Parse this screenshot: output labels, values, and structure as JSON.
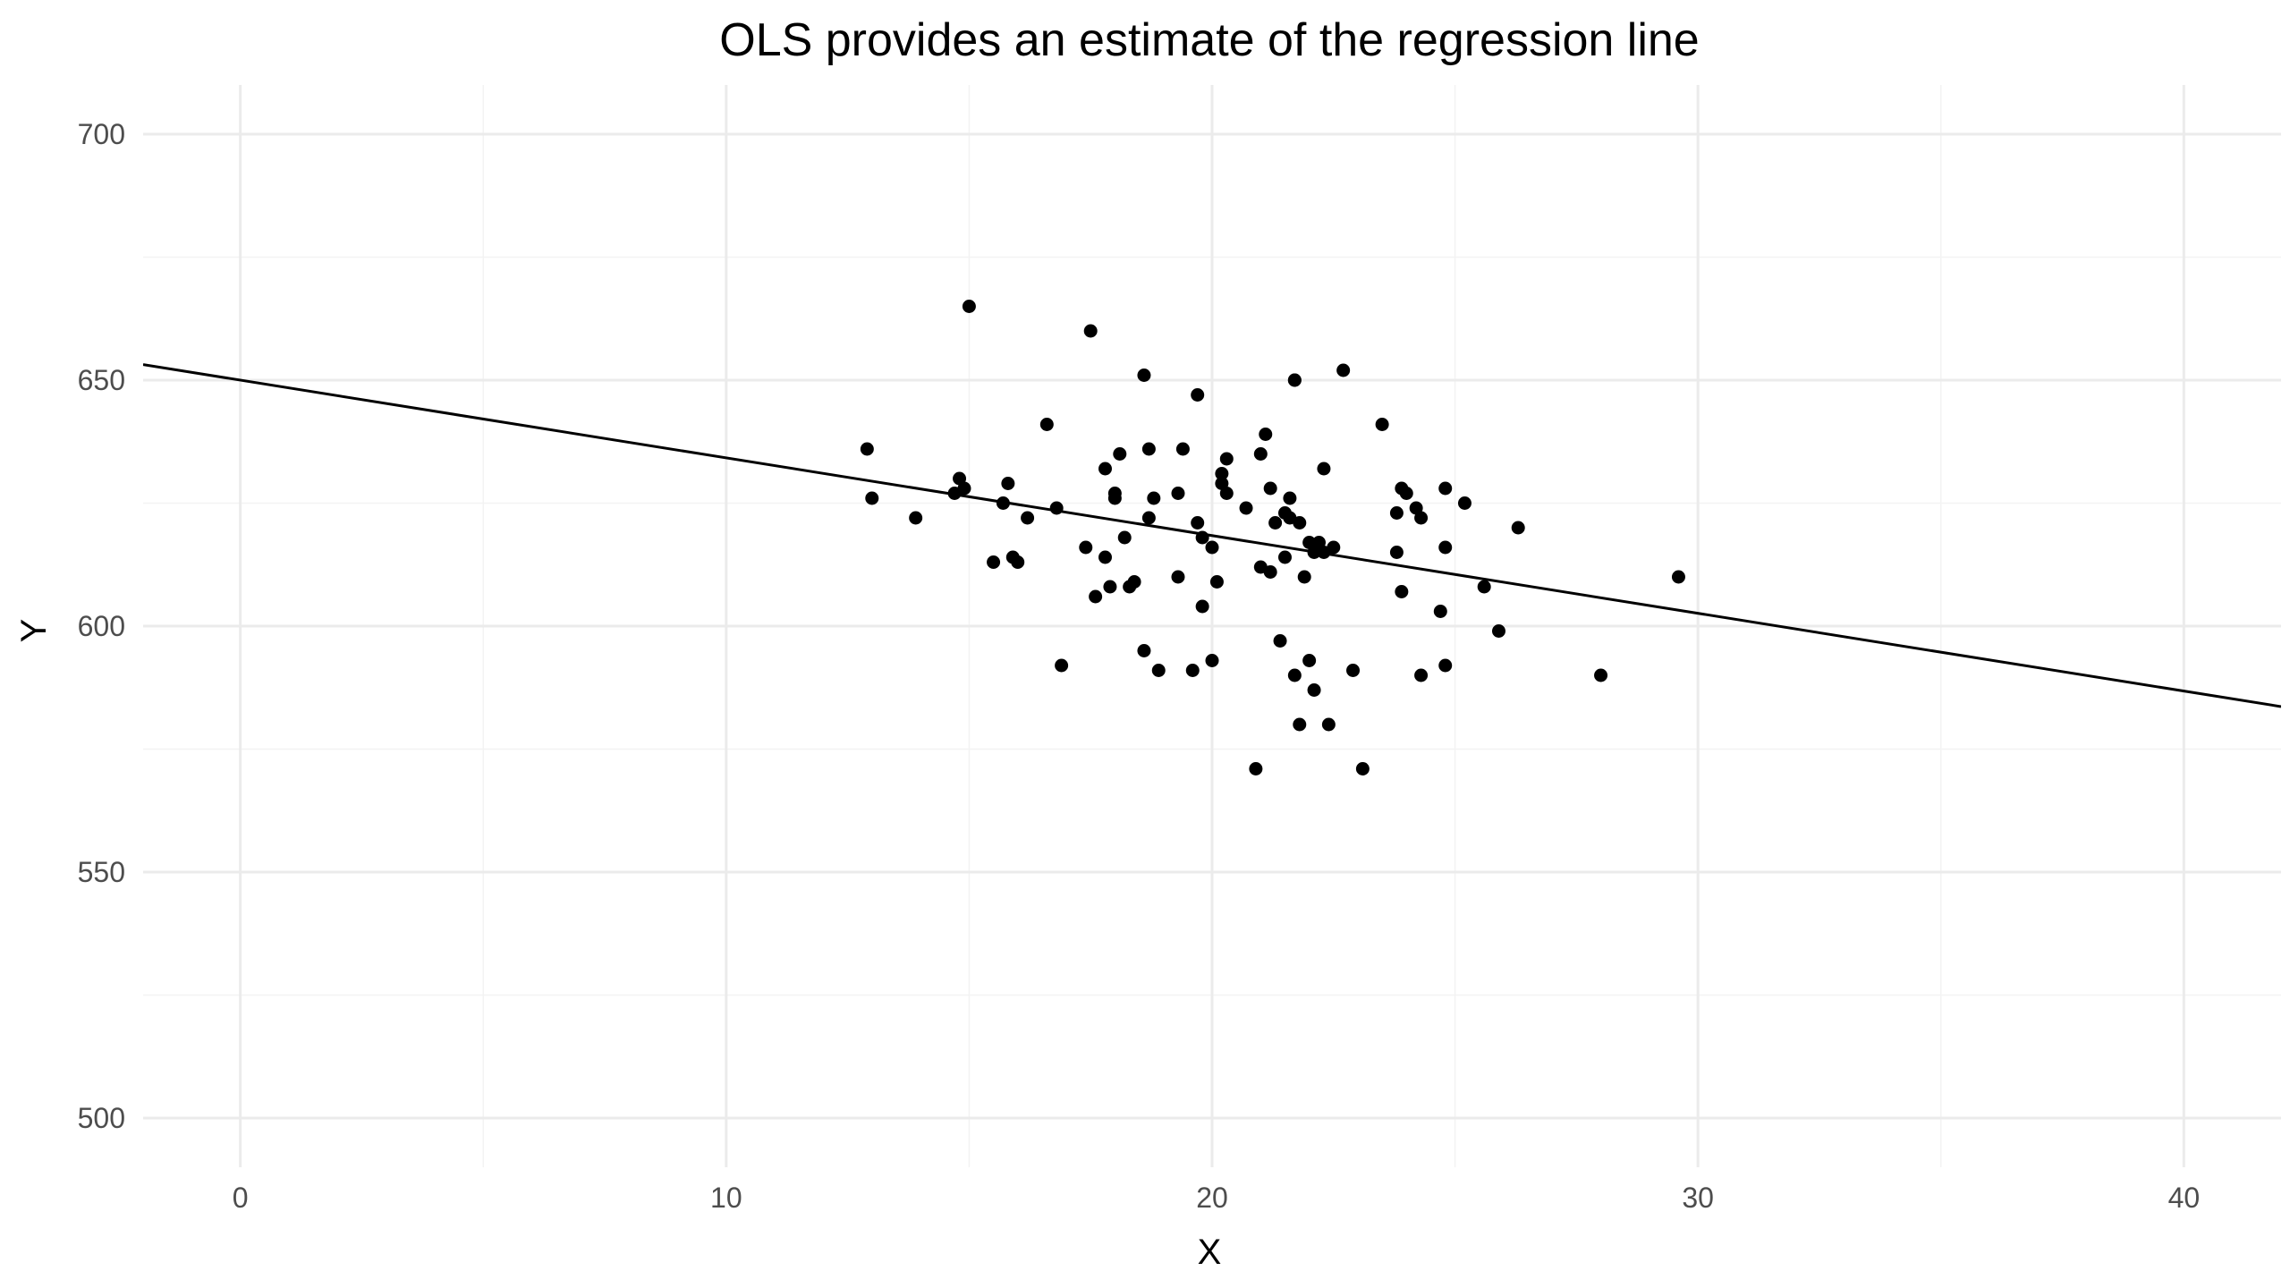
{
  "chart_data": {
    "type": "scatter",
    "title": "OLS provides an estimate of the regression line",
    "xlabel": "X",
    "ylabel": "Y",
    "xlim": [
      -2,
      42
    ],
    "ylim": [
      490,
      710
    ],
    "x_ticks": [
      0,
      10,
      20,
      30,
      40
    ],
    "y_ticks": [
      500,
      550,
      600,
      650,
      700
    ],
    "grid": true,
    "regression_line": {
      "intercept": 650,
      "slope": -1.58
    },
    "points": [
      [
        12.9,
        636
      ],
      [
        13.0,
        626
      ],
      [
        13.9,
        622
      ],
      [
        14.7,
        627
      ],
      [
        14.8,
        630
      ],
      [
        14.9,
        628
      ],
      [
        15.0,
        665
      ],
      [
        15.5,
        613
      ],
      [
        15.7,
        625
      ],
      [
        15.8,
        629
      ],
      [
        15.9,
        614
      ],
      [
        16.0,
        613
      ],
      [
        16.2,
        622
      ],
      [
        16.6,
        641
      ],
      [
        16.8,
        624
      ],
      [
        16.9,
        592
      ],
      [
        17.4,
        616
      ],
      [
        17.5,
        660
      ],
      [
        17.6,
        606
      ],
      [
        17.8,
        614
      ],
      [
        17.8,
        632
      ],
      [
        17.9,
        608
      ],
      [
        18.0,
        627
      ],
      [
        18.0,
        626
      ],
      [
        18.1,
        635
      ],
      [
        18.2,
        618
      ],
      [
        18.3,
        608
      ],
      [
        18.4,
        609
      ],
      [
        18.6,
        595
      ],
      [
        18.6,
        651
      ],
      [
        18.7,
        622
      ],
      [
        18.7,
        636
      ],
      [
        18.8,
        626
      ],
      [
        18.9,
        591
      ],
      [
        19.3,
        610
      ],
      [
        19.3,
        627
      ],
      [
        19.4,
        636
      ],
      [
        19.6,
        591
      ],
      [
        19.7,
        621
      ],
      [
        19.7,
        647
      ],
      [
        19.8,
        604
      ],
      [
        19.8,
        618
      ],
      [
        20.0,
        616
      ],
      [
        20.0,
        593
      ],
      [
        20.1,
        609
      ],
      [
        20.2,
        631
      ],
      [
        20.2,
        629
      ],
      [
        20.3,
        627
      ],
      [
        20.3,
        634
      ],
      [
        20.7,
        624
      ],
      [
        20.9,
        571
      ],
      [
        21.0,
        612
      ],
      [
        21.0,
        635
      ],
      [
        21.1,
        639
      ],
      [
        21.2,
        611
      ],
      [
        21.2,
        628
      ],
      [
        21.3,
        621
      ],
      [
        21.4,
        597
      ],
      [
        21.5,
        623
      ],
      [
        21.5,
        614
      ],
      [
        21.6,
        626
      ],
      [
        21.6,
        622
      ],
      [
        21.7,
        650
      ],
      [
        21.7,
        650
      ],
      [
        21.7,
        590
      ],
      [
        21.8,
        621
      ],
      [
        21.8,
        580
      ],
      [
        21.9,
        610
      ],
      [
        22.0,
        617
      ],
      [
        22.0,
        593
      ],
      [
        22.1,
        615
      ],
      [
        22.1,
        587
      ],
      [
        22.2,
        617
      ],
      [
        22.3,
        615
      ],
      [
        22.3,
        632
      ],
      [
        22.4,
        580
      ],
      [
        22.5,
        616
      ],
      [
        22.7,
        652
      ],
      [
        22.9,
        591
      ],
      [
        23.1,
        571
      ],
      [
        23.5,
        641
      ],
      [
        23.8,
        623
      ],
      [
        23.8,
        615
      ],
      [
        23.9,
        628
      ],
      [
        23.9,
        607
      ],
      [
        24.0,
        627
      ],
      [
        24.2,
        624
      ],
      [
        24.3,
        622
      ],
      [
        24.3,
        590
      ],
      [
        24.7,
        603
      ],
      [
        24.8,
        628
      ],
      [
        24.8,
        616
      ],
      [
        24.8,
        592
      ],
      [
        25.2,
        625
      ],
      [
        25.6,
        608
      ],
      [
        25.9,
        599
      ],
      [
        26.3,
        620
      ],
      [
        28.0,
        590
      ],
      [
        29.6,
        610
      ]
    ]
  }
}
